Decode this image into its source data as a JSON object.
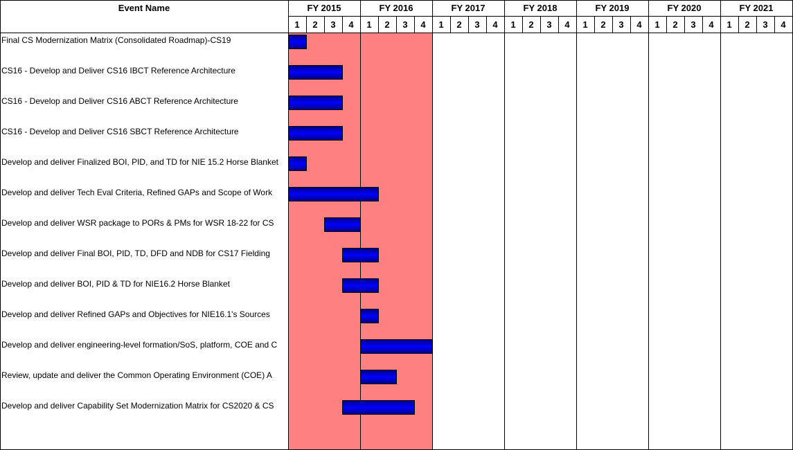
{
  "chart_data": {
    "type": "gantt",
    "header": {
      "event_column": "Event Name"
    },
    "fiscal_years": [
      "FY 2015",
      "FY 2016",
      "FY 2017",
      "FY 2018",
      "FY 2019",
      "FY 2020",
      "FY 2021"
    ],
    "quarter_labels": [
      "1",
      "2",
      "3",
      "4"
    ],
    "highlighted_years": [
      "FY 2015",
      "FY 2016"
    ],
    "colors": {
      "highlight": "#ff8080",
      "bar_dark": "#000080",
      "bar_mid": "#0000ff",
      "grid": "#000000",
      "header_rule": "#000000"
    },
    "tasks": [
      {
        "name": "Final CS Modernization Matrix (Consolidated Roadmap)-CS19",
        "start": "FY2015 Q1",
        "end": "FY2015 Q1"
      },
      {
        "name": "CS16 - Develop and Deliver CS16 IBCT Reference Architecture",
        "start": "FY2015 Q1",
        "end": "FY2015 Q3"
      },
      {
        "name": "CS16 - Develop and Deliver CS16 ABCT Reference Architecture",
        "start": "FY2015 Q1",
        "end": "FY2015 Q3"
      },
      {
        "name": "CS16 - Develop and Deliver CS16 SBCT Reference Architecture",
        "start": "FY2015 Q1",
        "end": "FY2015 Q3"
      },
      {
        "name": "Develop and deliver Finalized BOI, PID, and TD for NIE 15.2 Horse Blanket",
        "start": "FY2015 Q1",
        "end": "FY2015 Q1"
      },
      {
        "name": "Develop and deliver Tech Eval Criteria, Refined GAPs and Scope of Work",
        "start": "FY2015 Q1",
        "end": "FY2016 Q1"
      },
      {
        "name": "Develop and deliver WSR package to PORs & PMs for WSR 18-22 for CS",
        "start": "FY2015 Q3",
        "end": "FY2015 Q4"
      },
      {
        "name": "Develop and deliver Final BOI, PID, TD, DFD and NDB for CS17 Fielding",
        "start": "FY2015 Q4",
        "end": "FY2016 Q1"
      },
      {
        "name": "Develop and deliver BOI, PID & TD for NIE16.2 Horse Blanket",
        "start": "FY2015 Q4",
        "end": "FY2016 Q1"
      },
      {
        "name": "Develop and deliver Refined GAPs and Objectives for NIE16.1's Sources",
        "start": "FY2016 Q1",
        "end": "FY2016 Q1"
      },
      {
        "name": "Develop and deliver engineering-level formation/SoS, platform, COE and C",
        "start": "FY2016 Q1",
        "end": "FY2016 Q4"
      },
      {
        "name": "Review, update and deliver the Common Operating Environment (COE) A",
        "start": "FY2016 Q1",
        "end": "FY2016 Q2"
      },
      {
        "name": "Develop and deliver Capability Set Modernization Matrix for CS2020 & CS",
        "start": "FY2015 Q4",
        "end": "FY2016 Q3"
      }
    ]
  }
}
